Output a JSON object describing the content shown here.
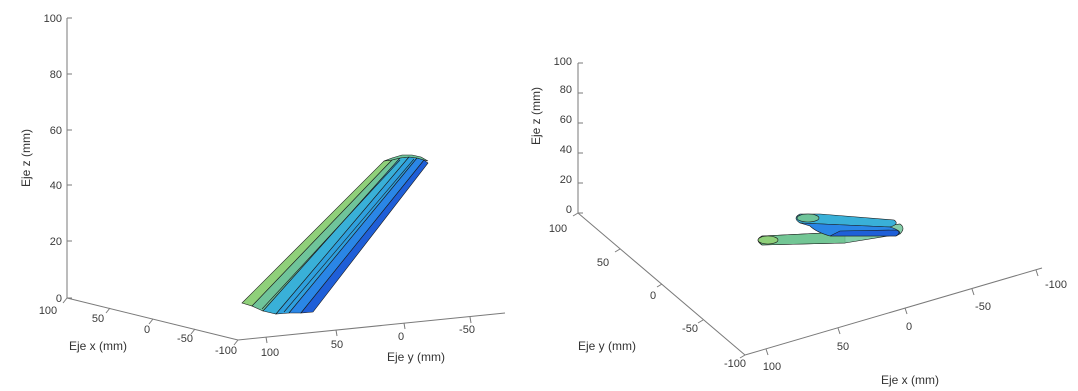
{
  "chart_data": [
    {
      "type": "surface3d",
      "title": "",
      "xlabel": "Eje x (mm)",
      "ylabel": "Eje y (mm)",
      "zlabel": "Eje z (mm)",
      "x_ticks": [
        "100",
        "50",
        "0",
        "-50",
        "-100"
      ],
      "y_ticks": [
        "100",
        "50",
        "0",
        "-50"
      ],
      "z_ticks": [
        "0",
        "20",
        "40",
        "60",
        "80",
        "100"
      ],
      "xlim": [
        -100,
        100
      ],
      "ylim": [
        -100,
        100
      ],
      "zlim": [
        0,
        100
      ],
      "view": "3d-perspective",
      "grid": false,
      "colors": [
        "#8fd07a",
        "#6fc49a",
        "#39b0d8",
        "#2a86e6",
        "#1f5fd8"
      ]
    },
    {
      "type": "surface3d",
      "title": "",
      "xlabel": "Eje x (mm)",
      "ylabel": "Eje y (mm)",
      "zlabel": "Eje z (mm)",
      "x_ticks": [
        "100",
        "50",
        "0",
        "-50",
        "-100"
      ],
      "y_ticks": [
        "100",
        "50",
        "0",
        "-50",
        "-100"
      ],
      "z_ticks": [
        "0",
        "20",
        "40",
        "60",
        "80",
        "100"
      ],
      "xlim": [
        -100,
        100
      ],
      "ylim": [
        -100,
        100
      ],
      "zlim": [
        0,
        100
      ],
      "view": "3d-perspective",
      "grid": false,
      "colors": [
        "#8fd07a",
        "#6fc49a",
        "#39b0d8",
        "#2a86e6",
        "#1f5fd8"
      ]
    }
  ]
}
